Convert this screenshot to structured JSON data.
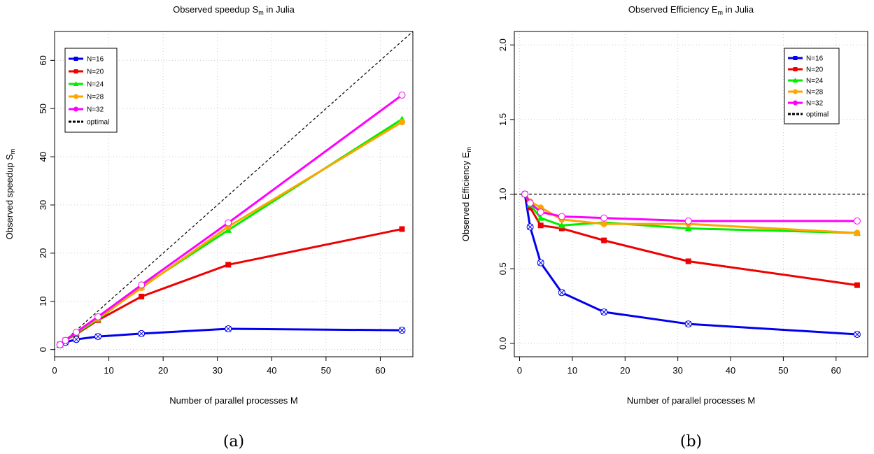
{
  "chart_data": [
    {
      "type": "line",
      "title": "Observed speedup S",
      "title_sub": "m",
      "title_suffix": " in Julia",
      "xlabel": "Number of parallel processes M",
      "ylabel": "Observed speedup S",
      "ylabel_sub": "m",
      "caption": "(a)",
      "xlim": [
        0,
        66
      ],
      "ylim": [
        -1.5,
        66
      ],
      "xticks": [
        0,
        10,
        20,
        30,
        40,
        50,
        60
      ],
      "yticks": [
        0,
        10,
        20,
        30,
        40,
        50,
        60
      ],
      "grid": true,
      "legend_position": "top-left",
      "x": [
        1,
        2,
        4,
        8,
        16,
        32,
        64
      ],
      "series": [
        {
          "name": "N=16",
          "color": "#0000ee",
          "marker": "square",
          "values": [
            1,
            1.5,
            2.1,
            2.7,
            3.3,
            4.3,
            4.0
          ]
        },
        {
          "name": "N=20",
          "color": "#ee0000",
          "marker": "square",
          "values": [
            1,
            1.9,
            3.2,
            6.1,
            11.0,
            17.6,
            25.0
          ]
        },
        {
          "name": "N=24",
          "color": "#00ee00",
          "marker": "triangle",
          "values": [
            1,
            1.9,
            3.4,
            6.3,
            13.0,
            24.8,
            47.8
          ]
        },
        {
          "name": "N=28",
          "color": "#ffa500",
          "marker": "circle",
          "values": [
            1,
            1.9,
            3.6,
            6.5,
            12.8,
            25.5,
            47.2
          ]
        },
        {
          "name": "N=32",
          "color": "#ff00ff",
          "marker": "circle",
          "values": [
            1,
            1.9,
            3.6,
            6.8,
            13.4,
            26.3,
            52.8
          ]
        }
      ],
      "reference": {
        "name": "optimal",
        "slope": 1,
        "intercept": 0
      }
    },
    {
      "type": "line",
      "title": "Observed Efficiency E",
      "title_sub": "m",
      "title_suffix": " in Julia",
      "xlabel": "Number of parallel processes M",
      "ylabel": "Observed Efficiency E",
      "ylabel_sub": "m",
      "caption": "(b)",
      "xlim": [
        -1,
        66
      ],
      "ylim": [
        -0.09,
        2.09
      ],
      "xticks": [
        0,
        10,
        20,
        30,
        40,
        50,
        60
      ],
      "yticks": [
        0.0,
        0.5,
        1.0,
        1.5,
        2.0
      ],
      "ytick_labels": [
        "0.0",
        "0.5",
        "1.0",
        "1.5",
        "2.0"
      ],
      "grid": true,
      "legend_position": "top-right",
      "x": [
        1,
        2,
        4,
        8,
        16,
        32,
        64
      ],
      "series": [
        {
          "name": "N=16",
          "color": "#0000ee",
          "marker": "square",
          "values": [
            1.0,
            0.78,
            0.54,
            0.34,
            0.21,
            0.13,
            0.06
          ]
        },
        {
          "name": "N=20",
          "color": "#ee0000",
          "marker": "square",
          "values": [
            1.0,
            0.91,
            0.79,
            0.77,
            0.69,
            0.55,
            0.39
          ]
        },
        {
          "name": "N=24",
          "color": "#00ee00",
          "marker": "triangle",
          "values": [
            1.0,
            0.93,
            0.84,
            0.79,
            0.81,
            0.77,
            0.74
          ]
        },
        {
          "name": "N=28",
          "color": "#ffa500",
          "marker": "circle",
          "values": [
            1.0,
            0.95,
            0.91,
            0.83,
            0.8,
            0.8,
            0.74
          ]
        },
        {
          "name": "N=32",
          "color": "#ff00ff",
          "marker": "circle",
          "values": [
            1.0,
            0.94,
            0.88,
            0.85,
            0.84,
            0.82,
            0.82
          ]
        }
      ],
      "reference": {
        "name": "optimal",
        "constant": 1.0
      }
    }
  ]
}
